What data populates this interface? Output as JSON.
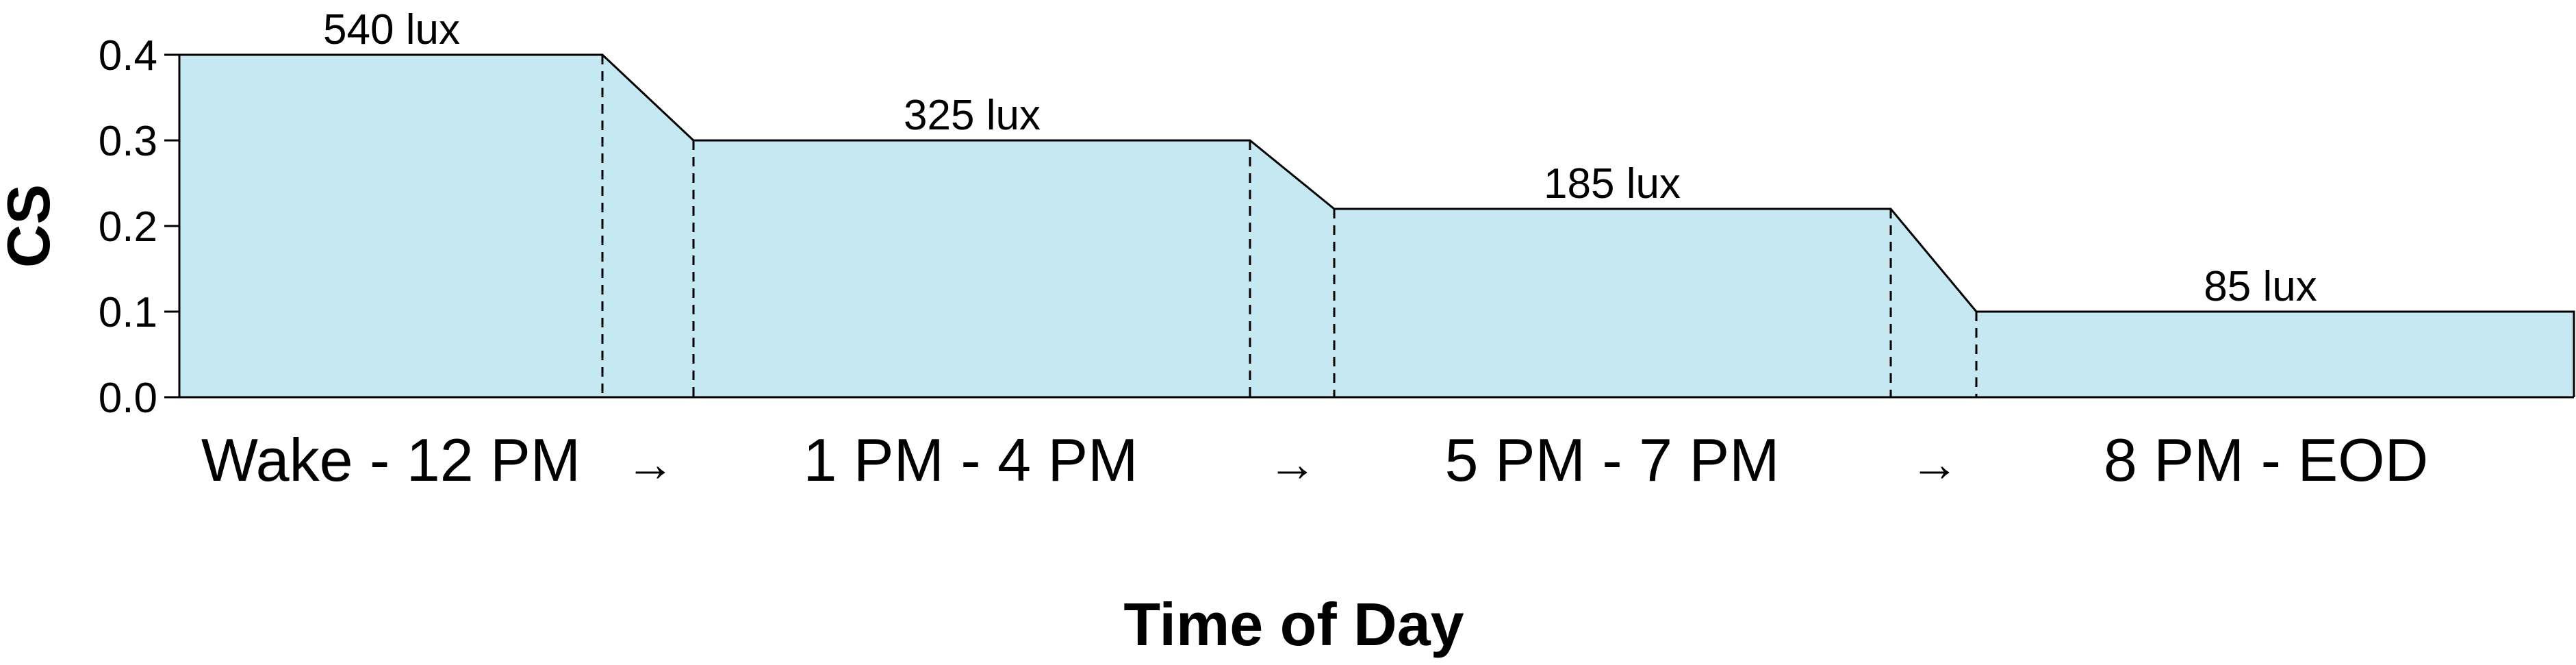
{
  "chart_data": {
    "type": "area",
    "title": "",
    "xlabel": "Time of Day",
    "ylabel": "CS",
    "ylim": [
      0.0,
      0.4
    ],
    "yticks": [
      "0.0",
      "0.1",
      "0.2",
      "0.3",
      "0.4"
    ],
    "grid": false,
    "legend": "none",
    "fill_color": "#c6e8f2",
    "line_color": "#000000",
    "categories": [
      "Wake - 12 PM",
      "1 PM - 4 PM",
      "5 PM - 7 PM",
      "8 PM - EOD"
    ],
    "separators": [
      "→",
      "→",
      "→"
    ],
    "series": [
      {
        "values": [
          0.4,
          0.3,
          0.22,
          0.1
        ],
        "labels": [
          "540 lux",
          "325 lux",
          "185 lux",
          "85 lux"
        ]
      }
    ]
  }
}
